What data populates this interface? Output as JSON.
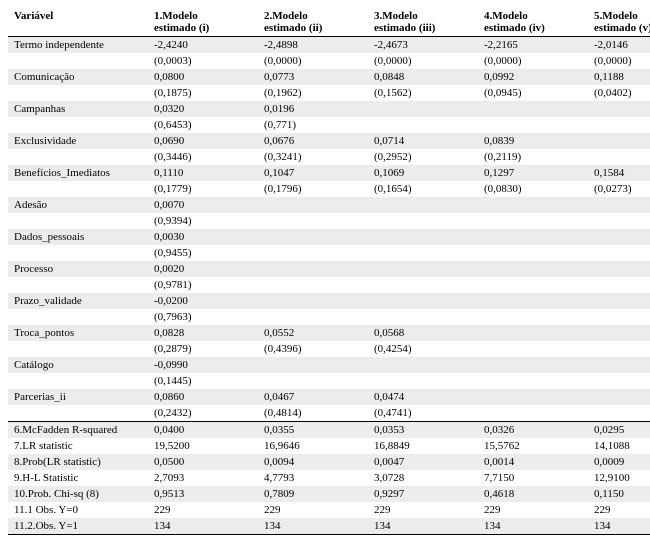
{
  "columns": {
    "var": "Variável",
    "models": [
      {
        "top": "1.Modelo",
        "bot": "estimado (i)"
      },
      {
        "top": "2.Modelo",
        "bot": "estimado (ii)"
      },
      {
        "top": "3.Modelo",
        "bot": "estimado (iii)"
      },
      {
        "top": "4.Modelo",
        "bot": "estimado (iv)"
      },
      {
        "top": "5.Modelo",
        "bot": "estimado (v)"
      }
    ]
  },
  "vars": [
    {
      "name": "Termo independente",
      "est": [
        "-2,4240",
        "-2,4898",
        "-2,4673",
        "-2,2165",
        "-2,0146"
      ],
      "p": [
        "(0,0003)",
        "(0,0000)",
        "(0,0000)",
        "(0,0000)",
        "(0,0000)"
      ]
    },
    {
      "name": "Comunicação",
      "est": [
        "0,0800",
        "0,0773",
        "0,0848",
        "0,0992",
        "0,1188"
      ],
      "p": [
        "(0,1875)",
        "(0,1962)",
        "(0,1562)",
        "(0,0945)",
        "(0,0402)"
      ]
    },
    {
      "name": "Campanhas",
      "est": [
        "0,0320",
        "0,0196",
        "",
        "",
        ""
      ],
      "p": [
        "(0,6453)",
        "(0,771)",
        "",
        "",
        ""
      ]
    },
    {
      "name": "Exclusividade",
      "est": [
        "0,0690",
        "0,0676",
        "0,0714",
        "0,0839",
        ""
      ],
      "p": [
        "(0,3446)",
        "(0,3241)",
        "(0,2952)",
        "(0,2119)",
        ""
      ]
    },
    {
      "name": "Benefícios_Imediatos",
      "est": [
        "0,1110",
        "0,1047",
        "0,1069",
        "0,1297",
        "0,1584"
      ],
      "p": [
        "(0,1779)",
        "(0,1796)",
        "(0,1654)",
        "(0,0830)",
        "(0,0273)"
      ]
    },
    {
      "name": "Adesão",
      "est": [
        "0,0070",
        "",
        "",
        "",
        ""
      ],
      "p": [
        "(0,9394)",
        "",
        "",
        "",
        ""
      ]
    },
    {
      "name": "Dados_pessoais",
      "est": [
        "0,0030",
        "",
        "",
        "",
        ""
      ],
      "p": [
        "(0,9455)",
        "",
        "",
        "",
        ""
      ]
    },
    {
      "name": "Processo",
      "est": [
        "0,0020",
        "",
        "",
        "",
        ""
      ],
      "p": [
        "(0,9781)",
        "",
        "",
        "",
        ""
      ]
    },
    {
      "name": "Prazo_validade",
      "est": [
        "-0,0200",
        "",
        "",
        "",
        ""
      ],
      "p": [
        "(0,7963)",
        "",
        "",
        "",
        ""
      ]
    },
    {
      "name": "Troca_pontos",
      "est": [
        "0,0828",
        "0,0552",
        "0,0568",
        "",
        ""
      ],
      "p": [
        "(0,2879)",
        "(0,4396)",
        "(0,4254)",
        "",
        ""
      ]
    },
    {
      "name": "Catálogo",
      "est": [
        "-0,0990",
        "",
        "",
        "",
        ""
      ],
      "p": [
        "(0,1445)",
        "",
        "",
        "",
        ""
      ]
    },
    {
      "name": "Parcerias_ii",
      "est": [
        "0,0860",
        "0,0467",
        "0,0474",
        "",
        ""
      ],
      "p": [
        "(0,2432)",
        "(0,4814)",
        "(0,4741)",
        "",
        ""
      ]
    }
  ],
  "summary": [
    {
      "name": "6.McFadden R-squared",
      "vals": [
        "0,0400",
        "0,0355",
        "0,0353",
        "0,0326",
        "0,0295"
      ]
    },
    {
      "name": "7.LR statistic",
      "vals": [
        "19,5200",
        "16,9646",
        "16,8849",
        "15,5762",
        "14,1088"
      ]
    },
    {
      "name": "8.Prob(LR statistic)",
      "vals": [
        "0,0500",
        "0,0094",
        "0,0047",
        "0,0014",
        "0,0009"
      ]
    },
    {
      "name": "9.H-L Statistic",
      "vals": [
        "2,7093",
        "4,7793",
        "3,0728",
        "7,7150",
        "12,9100"
      ]
    },
    {
      "name": "10.Prob. Chi-sq (8)",
      "vals": [
        "0,9513",
        "0,7809",
        "0,9297",
        "0,4618",
        "0,1150"
      ]
    },
    {
      "name": "11.1 Obs. Y=0",
      "vals": [
        "229",
        "229",
        "229",
        "229",
        "229"
      ]
    },
    {
      "name": "11.2.Obs. Y=1",
      "vals": [
        "134",
        "134",
        "134",
        "134",
        "134"
      ]
    }
  ]
}
